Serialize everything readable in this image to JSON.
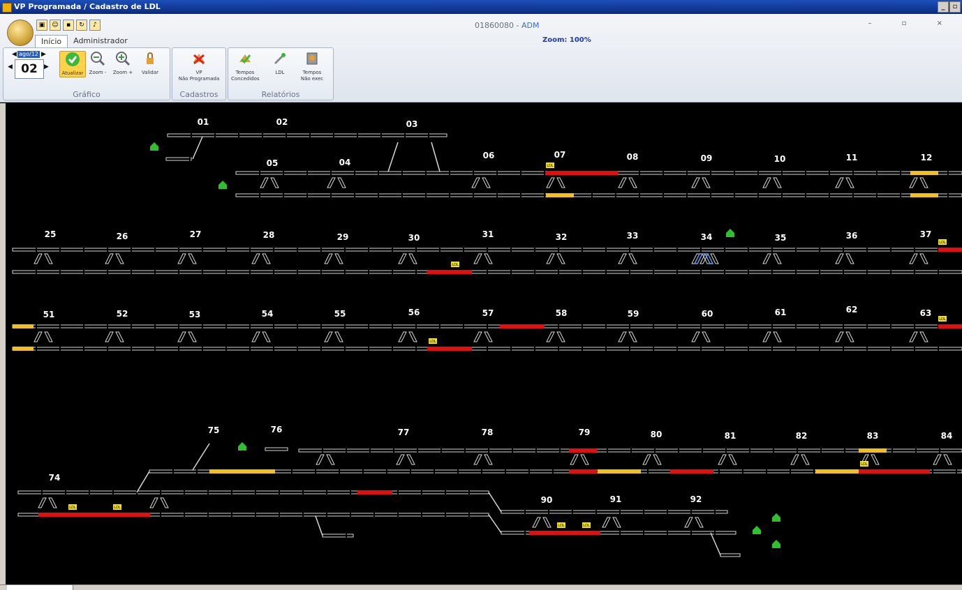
{
  "window": {
    "title": "VP Programada / Cadastro de LDL"
  },
  "header": {
    "user_code": "01860080",
    "separator": " - ",
    "user_role": "ADM",
    "zoom": "Zoom: 100%"
  },
  "tabs": [
    {
      "label": "Início"
    },
    {
      "label": "Administrador"
    }
  ],
  "date_control": {
    "month": "ago/12",
    "day": "02"
  },
  "groups": {
    "grafico": {
      "title": "Gráfico",
      "buttons": {
        "atualizar": "Atualizar",
        "zoom_out": "Zoom -",
        "zoom_in": "Zoom +",
        "validar": "Validar"
      }
    },
    "cadastros": {
      "title": "Cadastros",
      "buttons": {
        "vp_line1": "VP",
        "vp_line2": "Não Programada"
      }
    },
    "relatorios": {
      "title": "Relatórios",
      "buttons": {
        "tc_line1": "Tempos",
        "tc_line2": "Concedidos",
        "ldl": "LDL",
        "tn_line1": "Tempos",
        "tn_line2": "Não exec"
      }
    }
  },
  "colors": {
    "track": "#d8d8d8",
    "occupied_red": "#e01010",
    "reserved_yellow": "#f0c020",
    "ldl_tag": "#f5e400",
    "house_green": "#2ec02e",
    "highlight_blue": "#6a9ce0"
  },
  "diagram": {
    "section_labels": [
      "01",
      "02",
      "03",
      "05",
      "04",
      "06",
      "07",
      "08",
      "09",
      "10",
      "11",
      "12",
      "25",
      "26",
      "27",
      "28",
      "29",
      "30",
      "31",
      "32",
      "33",
      "34",
      "35",
      "36",
      "37",
      "51",
      "52",
      "53",
      "54",
      "55",
      "56",
      "57",
      "58",
      "59",
      "60",
      "61",
      "62",
      "63",
      "75",
      "76",
      "77",
      "78",
      "79",
      "80",
      "81",
      "82",
      "83",
      "84",
      "74",
      "90",
      "91",
      "92"
    ],
    "ldl_tag_text": "LDL"
  }
}
